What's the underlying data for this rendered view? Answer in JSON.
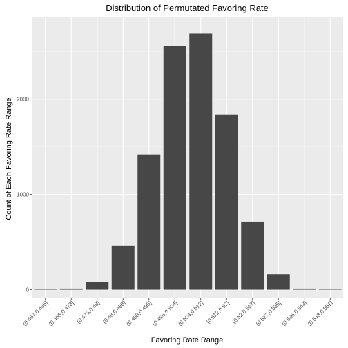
{
  "chart_data": {
    "type": "bar",
    "title": "Distribution of Permutated Favoring Rate",
    "xlabel": "Favoring Rate Range",
    "ylabel": "Count of Each Favoring Rate Range",
    "categories": [
      "(0.457,0.465]",
      "(0.465,0.473]",
      "(0.473,0.48]",
      "(0.48,0.488]",
      "(0.488,0.496]",
      "(0.496,0.504]",
      "(0.504,0.512]",
      "(0.512,0.52]",
      "(0.52,0.527]",
      "(0.527,0.535]",
      "(0.535,0.543]",
      "(0.543,0.551]"
    ],
    "values": [
      2,
      12,
      78,
      462,
      1420,
      2560,
      2690,
      1840,
      715,
      162,
      12,
      2
    ],
    "ylim": [
      -90,
      2860
    ],
    "yticks": [
      0,
      1000,
      2000
    ],
    "grid": true,
    "colors": {
      "bar": "#474747",
      "panel": "#ebebeb",
      "grid_major": "#ffffff",
      "grid_minor": "#f4f4f4",
      "tick_text": "#4d4d4d"
    }
  }
}
